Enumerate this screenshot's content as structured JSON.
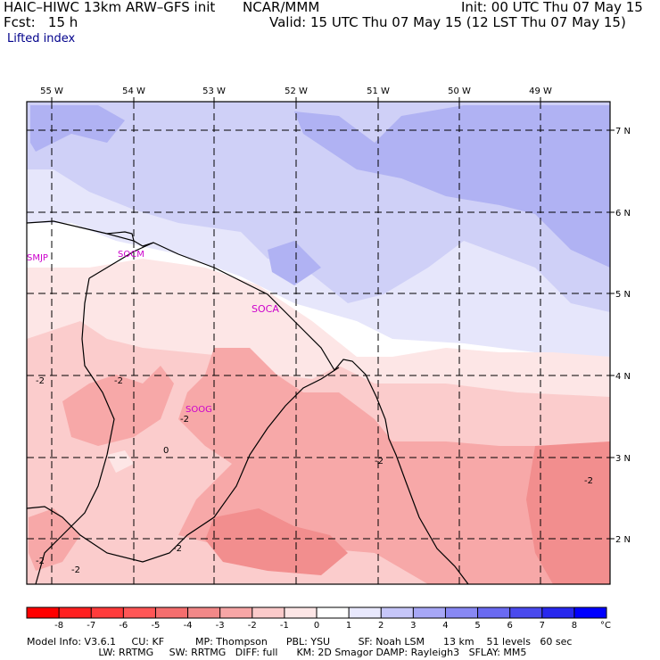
{
  "header": {
    "model_title": "HAIC–HIWC 13km ARW–GFS init",
    "agency": "NCAR/MMM",
    "init": "Init: 00 UTC Thu 07 May 15",
    "fcst": "Fcst:   15 h",
    "valid": "Valid: 15 UTC Thu 07 May 15 (12 LST Thu 07 May 15)",
    "field": "Lifted index"
  },
  "map": {
    "lon_labels": [
      "55 W",
      "54 W",
      "53 W",
      "52 W",
      "51 W",
      "50 W",
      "49 W"
    ],
    "lat_labels": [
      "7 N",
      "6 N",
      "5 N",
      "4 N",
      "3 N",
      "2 N"
    ],
    "stations": [
      "SMJP",
      "SOCM",
      "SOCA",
      "SOOG"
    ],
    "contour_labels": [
      "-2",
      "-2",
      "-2",
      "-2",
      "-2",
      "-2",
      "-2",
      "-2",
      "0"
    ],
    "colors": {
      "blue_2": "#cfd0f7",
      "blue_3": "#b0b2f3",
      "blue_1": "#e6e6fb",
      "white_0": "#ffffff",
      "pink_m1": "#fde6e6",
      "pink_m2": "#fbcccc",
      "pink_m3": "#f7a8a8",
      "pink_m4": "#f28e8e"
    }
  },
  "legend": {
    "ticks": [
      "-8",
      "-7",
      "-6",
      "-5",
      "-4",
      "-3",
      "-2",
      "-1",
      "0",
      "1",
      "2",
      "3",
      "4",
      "5",
      "6",
      "7",
      "8"
    ],
    "unit": "°C",
    "colors": [
      "#ff0000",
      "#ff2020",
      "#ff3b3b",
      "#ff5656",
      "#f56e6e",
      "#f28888",
      "#f7a6a6",
      "#fbcaca",
      "#fde6e6",
      "#ffffff",
      "#e8e8fd",
      "#c6c6f9",
      "#a7a7f6",
      "#8888f3",
      "#6a6af1",
      "#4a4aee",
      "#2828ee",
      "#0000ff"
    ]
  },
  "footer": {
    "line1": "Model Info: V3.6.1     CU: KF          MP: Thompson      PBL: YSU         SF: Noah LSM      13 km    51 levels   60 sec",
    "line2": "                       LW: RRTMG     SW: RRTMG   DIFF: full      KM: 2D Smagor DAMP: Rayleigh3   SFLAY: MM5"
  }
}
